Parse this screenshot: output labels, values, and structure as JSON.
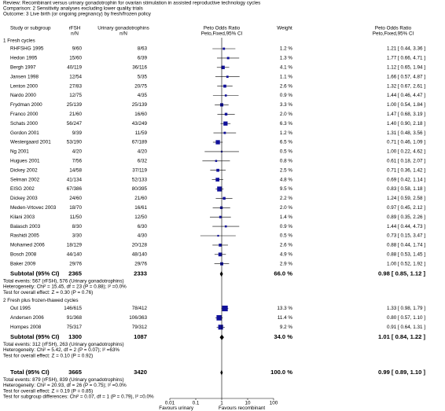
{
  "review": "Review: Recombinant versus urinary gonadotrophin for ovarian stimulation in assisted reproductive technology cycles",
  "comparison": "Comparison: 2 Sensitivity analyses excluding lower quality trials",
  "outcome": "Outcome: 3 Live birth (or ongoing pregnancy) by fresh/frozen policy",
  "columns": {
    "study": "Study or subgroup",
    "exp": "rFSH",
    "exp_unit": "n/N",
    "ctrl": "Urinary gonadotrophins",
    "ctrl_unit": "n/N",
    "plot": "Peto Odds Ratio",
    "plot_method": "Peto,Fixed,95% CI",
    "weight": "Weight",
    "effect": "Peto Odds Ratio",
    "effect_method": "Peto,Fixed,95% CI"
  },
  "chart_data": {
    "type": "forest",
    "log_scale": true,
    "xlim": [
      0.01,
      100
    ],
    "xticks": [
      0.01,
      0.1,
      1,
      10,
      100
    ],
    "reference_line": 1,
    "square_color": "#10109a",
    "diamond_color": "#000000",
    "favours_left": "Favours urinary",
    "favours_right": "Favours recombinant",
    "groups": [
      {
        "title": "1 Fresh cycles",
        "studies": [
          {
            "name": "RHFSHG 1995",
            "exp": "9/60",
            "ctrl": "8/63",
            "weight": 1.2,
            "weight_label": "1.2 %",
            "or": 1.21,
            "lo": 0.44,
            "hi": 3.36,
            "ci_label": "1.21 [ 0.44, 3.36 ]"
          },
          {
            "name": "Hedon 1995",
            "exp": "15/60",
            "ctrl": "6/39",
            "weight": 1.3,
            "weight_label": "1.3 %",
            "or": 1.77,
            "lo": 0.66,
            "hi": 4.71,
            "ci_label": "1.77 [ 0.66, 4.71 ]"
          },
          {
            "name": "Bergh 1997",
            "exp": "40/119",
            "ctrl": "36/116",
            "weight": 4.1,
            "weight_label": "4.1 %",
            "or": 1.12,
            "lo": 0.65,
            "hi": 1.94,
            "ci_label": "1.12 [ 0.65, 1.94 ]"
          },
          {
            "name": "Jansen 1998",
            "exp": "12/54",
            "ctrl": "5/35",
            "weight": 1.1,
            "weight_label": "1.1 %",
            "or": 1.66,
            "lo": 0.57,
            "hi": 4.87,
            "ci_label": "1.66 [ 0.57, 4.87 ]"
          },
          {
            "name": "Lenton 2000",
            "exp": "27/83",
            "ctrl": "20/75",
            "weight": 2.6,
            "weight_label": "2.6 %",
            "or": 1.32,
            "lo": 0.67,
            "hi": 2.61,
            "ci_label": "1.32 [ 0.67, 2.61 ]"
          },
          {
            "name": "Nardo 2000",
            "exp": "12/75",
            "ctrl": "4/35",
            "weight": 0.9,
            "weight_label": "0.9 %",
            "or": 1.44,
            "lo": 0.46,
            "hi": 4.47,
            "ci_label": "1.44 [ 0.46, 4.47 ]"
          },
          {
            "name": "Frydman 2000",
            "exp": "25/139",
            "ctrl": "25/139",
            "weight": 3.3,
            "weight_label": "3.3 %",
            "or": 1.0,
            "lo": 0.54,
            "hi": 1.84,
            "ci_label": "1.00 [ 0.54, 1.84 ]"
          },
          {
            "name": "Franco 2000",
            "exp": "21/60",
            "ctrl": "16/60",
            "weight": 2.0,
            "weight_label": "2.0 %",
            "or": 1.47,
            "lo": 0.68,
            "hi": 3.19,
            "ci_label": "1.47 [ 0.68, 3.19 ]"
          },
          {
            "name": "Schats 2000",
            "exp": "56/247",
            "ctrl": "43/249",
            "weight": 6.3,
            "weight_label": "6.3 %",
            "or": 1.4,
            "lo": 0.9,
            "hi": 2.18,
            "ci_label": "1.40 [ 0.90, 2.18 ]"
          },
          {
            "name": "Gordon 2001",
            "exp": "9/39",
            "ctrl": "11/59",
            "weight": 1.2,
            "weight_label": "1.2 %",
            "or": 1.31,
            "lo": 0.48,
            "hi": 3.56,
            "ci_label": "1.31 [ 0.48, 3.56 ]"
          },
          {
            "name": "Westergaard 2001",
            "exp": "53/190",
            "ctrl": "67/189",
            "weight": 6.5,
            "weight_label": "6.5 %",
            "or": 0.71,
            "lo": 0.46,
            "hi": 1.09,
            "ci_label": "0.71 [ 0.46, 1.09 ]"
          },
          {
            "name": "Ng 2001",
            "exp": "4/20",
            "ctrl": "4/20",
            "weight": 0.5,
            "weight_label": "0.5 %",
            "or": 1.0,
            "lo": 0.22,
            "hi": 4.62,
            "ci_label": "1.00 [ 0.22, 4.62 ]"
          },
          {
            "name": "Hugues 2001",
            "exp": "7/56",
            "ctrl": "6/32",
            "weight": 0.8,
            "weight_label": "0.8 %",
            "or": 0.61,
            "lo": 0.18,
            "hi": 2.07,
            "ci_label": "0.61 [ 0.18, 2.07 ]"
          },
          {
            "name": "Dickey 2002",
            "exp": "14/58",
            "ctrl": "37/119",
            "weight": 2.5,
            "weight_label": "2.5 %",
            "or": 0.71,
            "lo": 0.36,
            "hi": 1.42,
            "ci_label": "0.71 [ 0.36, 1.42 ]"
          },
          {
            "name": "Selman 2002",
            "exp": "41/134",
            "ctrl": "52/133",
            "weight": 4.8,
            "weight_label": "4.8 %",
            "or": 0.69,
            "lo": 0.42,
            "hi": 1.14,
            "ci_label": "0.69 [ 0.42, 1.14 ]"
          },
          {
            "name": "EISG 2002",
            "exp": "67/386",
            "ctrl": "80/395",
            "weight": 9.5,
            "weight_label": "9.5 %",
            "or": 0.83,
            "lo": 0.58,
            "hi": 1.18,
            "ci_label": "0.83 [ 0.58, 1.18 ]"
          },
          {
            "name": "Dickey 2003",
            "exp": "24/60",
            "ctrl": "21/60",
            "weight": 2.2,
            "weight_label": "2.2 %",
            "or": 1.24,
            "lo": 0.59,
            "hi": 2.58,
            "ci_label": "1.24 [ 0.59, 2.58 ]"
          },
          {
            "name": "Meden-Vrtovec 2003",
            "exp": "18/70",
            "ctrl": "16/61",
            "weight": 2.0,
            "weight_label": "2.0 %",
            "or": 0.97,
            "lo": 0.45,
            "hi": 2.12,
            "ci_label": "0.97 [ 0.45, 2.12 ]"
          },
          {
            "name": "Kilani 2003",
            "exp": "11/50",
            "ctrl": "12/50",
            "weight": 1.4,
            "weight_label": "1.4 %",
            "or": 0.89,
            "lo": 0.35,
            "hi": 2.26,
            "ci_label": "0.89 [ 0.35, 2.26 ]"
          },
          {
            "name": "Balasch 2003",
            "exp": "8/30",
            "ctrl": "6/30",
            "weight": 0.9,
            "weight_label": "0.9 %",
            "or": 1.44,
            "lo": 0.44,
            "hi": 4.73,
            "ci_label": "1.44 [ 0.44, 4.73 ]"
          },
          {
            "name": "Rashidi 2005",
            "exp": "3/30",
            "ctrl": "4/30",
            "weight": 0.5,
            "weight_label": "0.5 %",
            "or": 0.73,
            "lo": 0.15,
            "hi": 3.47,
            "ci_label": "0.73 [ 0.15, 3.47 ]"
          },
          {
            "name": "Mohamed 2006",
            "exp": "18/129",
            "ctrl": "20/128",
            "weight": 2.6,
            "weight_label": "2.6 %",
            "or": 0.88,
            "lo": 0.44,
            "hi": 1.74,
            "ci_label": "0.88 [ 0.44, 1.74 ]"
          },
          {
            "name": "Bosch 2008",
            "exp": "44/140",
            "ctrl": "48/140",
            "weight": 4.9,
            "weight_label": "4.9 %",
            "or": 0.88,
            "lo": 0.53,
            "hi": 1.45,
            "ci_label": "0.88 [ 0.53, 1.45 ]"
          },
          {
            "name": "Baker 2009",
            "exp": "29/76",
            "ctrl": "29/76",
            "weight": 2.9,
            "weight_label": "2.9 %",
            "or": 1.0,
            "lo": 0.52,
            "hi": 1.92,
            "ci_label": "1.00 [ 0.52, 1.92 ]"
          }
        ],
        "subtotal": {
          "name": "Subtotal (95% CI)",
          "exp": 2365,
          "ctrl": 2333,
          "weight_label": "66.0 %",
          "or": 0.98,
          "lo": 0.85,
          "hi": 1.12,
          "ci_label": "0.98 [ 0.85, 1.12 ]"
        },
        "notes": [
          "Total events: 567 (rFSH), 576 (Urinary gonadotrophins)",
          "Heterogeneity: Chi² = 15.45, df = 23 (P = 0.88); I² =0.0%",
          "Test for overall effect: Z = 0.30 (P = 0.76)"
        ]
      },
      {
        "title": "2 Fresh plus frozen-thawed cycles",
        "studies": [
          {
            "name": "Out 1995",
            "exp": "146/615",
            "ctrl": "78/412",
            "weight": 13.3,
            "weight_label": "13.3 %",
            "or": 1.33,
            "lo": 0.98,
            "hi": 1.79,
            "ci_label": "1.33 [ 0.98, 1.79 ]"
          },
          {
            "name": "Andersen 2006",
            "exp": "91/368",
            "ctrl": "106/363",
            "weight": 11.4,
            "weight_label": "11.4 %",
            "or": 0.8,
            "lo": 0.57,
            "hi": 1.1,
            "ci_label": "0.80 [ 0.57, 1.10 ]"
          },
          {
            "name": "Hompes 2008",
            "exp": "75/317",
            "ctrl": "79/312",
            "weight": 9.2,
            "weight_label": "9.2 %",
            "or": 0.91,
            "lo": 0.64,
            "hi": 1.31,
            "ci_label": "0.91 [ 0.64, 1.31 ]"
          }
        ],
        "subtotal": {
          "name": "Subtotal (95% CI)",
          "exp": 1300,
          "ctrl": 1087,
          "weight_label": "34.0 %",
          "or": 1.01,
          "lo": 0.84,
          "hi": 1.22,
          "ci_label": "1.01 [ 0.84, 1.22 ]"
        },
        "notes": [
          "Total events: 312 (rFSH), 263 (Urinary gonadotrophins)",
          "Heterogeneity: Chi² = 5.42, df = 2 (P = 0.07); I² =63%",
          "Test for overall effect: Z = 0.10 (P = 0.92)"
        ]
      }
    ],
    "total": {
      "name": "Total (95% CI)",
      "exp": 3665,
      "ctrl": 3420,
      "weight_label": "100.0 %",
      "or": 0.99,
      "lo": 0.89,
      "hi": 1.1,
      "ci_label": "0.99 [ 0.89, 1.10 ]"
    },
    "total_notes": [
      "Total events: 879 (rFSH), 839 (Urinary gonadotrophins)",
      "Heterogeneity: Chi² = 20.93, df = 26 (P = 0.75); I² =0.0%",
      "Test for overall effect: Z = 0.19 (P = 0.85)",
      "Test for subgroup differences: Chi² = 0.07, df = 1 (P = 0.79), I² =0.0%"
    ]
  }
}
